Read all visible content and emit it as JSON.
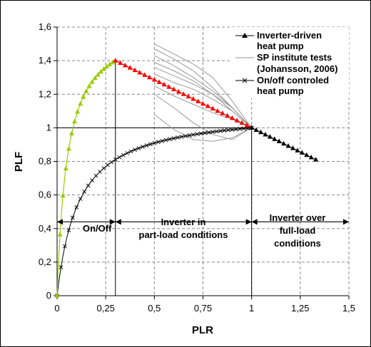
{
  "chart_data": {
    "type": "line",
    "xlabel": "PLR",
    "ylabel": "PLF",
    "xlim": [
      0,
      1.5
    ],
    "ylim": [
      0,
      1.6
    ],
    "x_ticks": [
      "0",
      "0,25",
      "0,5",
      "0,75",
      "1",
      "1,25",
      "1,5"
    ],
    "y_ticks": [
      "0",
      "0,2",
      "0,4",
      "0,6",
      "0,8",
      "1",
      "1,2",
      "1,4",
      "1,6"
    ],
    "grid": true,
    "legend_position": "top-right",
    "legend": [
      "Inverter-driven\nheat pump",
      "SP institute tests\n(Johansson, 2006)",
      "On/off controled\nheat pump"
    ],
    "series": [
      {
        "name": "Inverter-driven heat pump",
        "segments": [
          {
            "color": "#99cc00",
            "x_range": [
              0,
              0.3
            ],
            "y_at_max": 1.4
          },
          {
            "color": "#ff0000",
            "x_range": [
              0.3,
              1.0
            ],
            "y_start": 1.4,
            "y_end": 1.0
          },
          {
            "color": "#000000",
            "x_range": [
              1.0,
              1.33
            ],
            "y_start": 1.0,
            "y_end": 0.81
          }
        ]
      },
      {
        "name": "SP institute tests (Johansson, 2006)",
        "color": "#999999",
        "x": [
          0.5,
          0.6,
          0.7,
          0.8,
          0.9,
          1.0
        ],
        "curves": [
          [
            1.5,
            1.44,
            1.38,
            1.3,
            1.16,
            1.0
          ],
          [
            1.47,
            1.41,
            1.34,
            1.24,
            1.12,
            1.0
          ],
          [
            1.43,
            1.37,
            1.3,
            1.22,
            1.12,
            1.0
          ],
          [
            1.39,
            1.34,
            1.28,
            1.2,
            1.1,
            1.0
          ],
          [
            1.36,
            1.31,
            1.26,
            1.2,
            1.12,
            1.0
          ],
          [
            1.32,
            1.27,
            1.23,
            1.17,
            1.1,
            1.0
          ],
          [
            1.25,
            1.19,
            1.14,
            1.09,
            1.05,
            1.0
          ],
          [
            1.2,
            1.12,
            1.03,
            0.96,
            0.93,
            1.0
          ],
          [
            1.08,
            0.99,
            0.93,
            0.92,
            0.94,
            1.0
          ]
        ]
      },
      {
        "name": "On/off controled heat pump",
        "color": "#000000",
        "x_range": [
          0,
          1.0
        ]
      }
    ],
    "annotations": {
      "region_on_off": "On/Off",
      "region_part_load_1": "Inverter in",
      "region_part_load_2": "part-load conditions",
      "region_full_load_1": "Inverter over",
      "region_full_load_2": "full-load",
      "region_full_load_3": "conditions"
    }
  }
}
